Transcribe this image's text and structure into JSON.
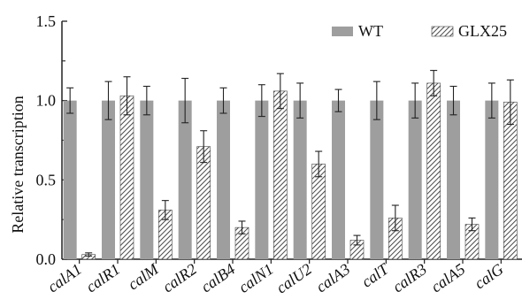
{
  "chart_data": {
    "type": "bar",
    "title": "",
    "xlabel": "",
    "ylabel": "Relative transcription",
    "ylim": [
      0,
      1.5
    ],
    "yticks": [
      "0.0",
      "0.5",
      "1.0",
      "1.5"
    ],
    "grid": false,
    "legend_position": "top-right",
    "categories": [
      "calA1",
      "calR1",
      "calM",
      "calR2",
      "calB4",
      "calN1",
      "calU2",
      "calA3",
      "calT",
      "calR3",
      "calA5",
      "calG"
    ],
    "series": [
      {
        "name": "WT",
        "color": "#9e9e9e",
        "pattern": "solid",
        "values": [
          1.0,
          1.0,
          1.0,
          1.0,
          1.0,
          1.0,
          1.0,
          1.0,
          1.0,
          1.0,
          1.0,
          1.0
        ],
        "errors": [
          0.08,
          0.12,
          0.09,
          0.14,
          0.08,
          0.1,
          0.11,
          0.07,
          0.12,
          0.11,
          0.09,
          0.11
        ]
      },
      {
        "name": "GLX25",
        "color": "#555555",
        "pattern": "hatched",
        "values": [
          0.03,
          1.03,
          0.31,
          0.71,
          0.2,
          1.06,
          0.6,
          0.12,
          0.26,
          1.11,
          0.22,
          0.99
        ],
        "errors": [
          0.01,
          0.12,
          0.06,
          0.1,
          0.04,
          0.11,
          0.08,
          0.03,
          0.08,
          0.08,
          0.04,
          0.14
        ]
      }
    ]
  }
}
